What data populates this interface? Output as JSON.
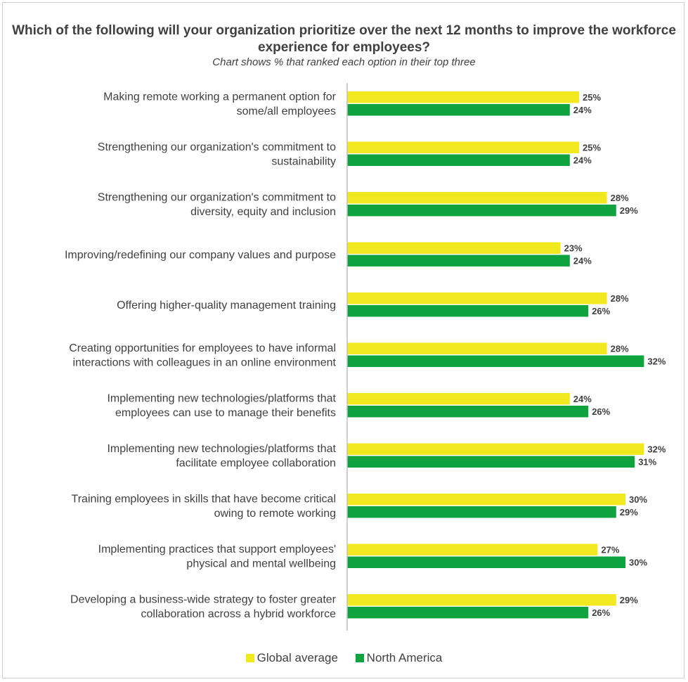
{
  "chart_data": {
    "type": "bar",
    "orientation": "horizontal",
    "title": "Which of the following will your organization prioritize over the next 12 months to improve the workforce experience for employees?",
    "subtitle": "Chart shows % that ranked each option in their top three",
    "categories": [
      [
        "Making remote working a permanent option for",
        "some/all employees"
      ],
      [
        "Strengthening our organization's commitment to",
        "sustainability"
      ],
      [
        "Strengthening our organization's commitment to",
        "diversity, equity and inclusion"
      ],
      [
        "Improving/redefining our company values and purpose"
      ],
      [
        "Offering higher-quality management training"
      ],
      [
        "Creating opportunities for employees to have informal",
        "interactions with colleagues in an online environment"
      ],
      [
        "Implementing new technologies/platforms that",
        "employees can use to manage their benefits"
      ],
      [
        "Implementing new technologies/platforms that",
        "facilitate employee collaboration"
      ],
      [
        "Training employees in skills that have become critical",
        "owing to remote working"
      ],
      [
        "Implementing practices that support employees'",
        "physical and mental wellbeing"
      ],
      [
        "Developing a business-wide strategy to foster greater",
        "collaboration across a hybrid workforce"
      ]
    ],
    "series": [
      {
        "name": "Global average",
        "color": "#f2e81f",
        "values": [
          25,
          25,
          28,
          23,
          28,
          28,
          24,
          32,
          30,
          27,
          29
        ]
      },
      {
        "name": "North America",
        "color": "#0fa340",
        "values": [
          24,
          24,
          29,
          24,
          26,
          32,
          26,
          31,
          29,
          30,
          26
        ]
      }
    ],
    "value_suffix": "%",
    "xlim": [
      0,
      32
    ],
    "grid": false,
    "legend_position": "bottom"
  }
}
